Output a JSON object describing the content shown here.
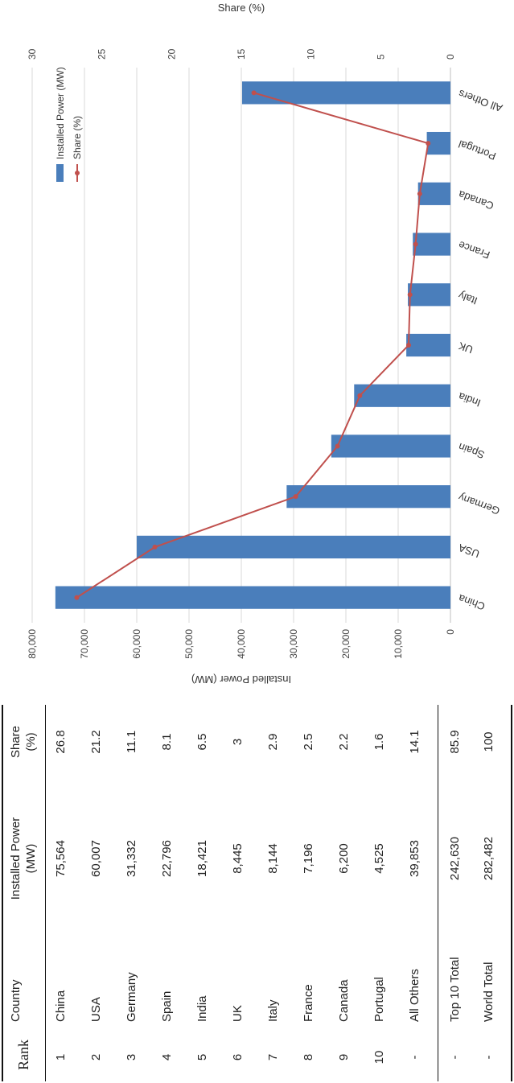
{
  "table": {
    "headers": {
      "rank": "Rank",
      "country": "Country",
      "power_line1": "Installed Power",
      "power_line2": "(MW)",
      "share_line1": "Share",
      "share_line2": "(%)"
    },
    "rows": [
      {
        "rank": "1",
        "country": "China",
        "power": "75,564",
        "share": "26.8"
      },
      {
        "rank": "2",
        "country": "USA",
        "power": "60,007",
        "share": "21.2"
      },
      {
        "rank": "3",
        "country": "Germany",
        "power": "31,332",
        "share": "11.1"
      },
      {
        "rank": "4",
        "country": "Spain",
        "power": "22,796",
        "share": "8.1"
      },
      {
        "rank": "5",
        "country": "India",
        "power": "18,421",
        "share": "6.5"
      },
      {
        "rank": "6",
        "country": "UK",
        "power": "8,445",
        "share": "3"
      },
      {
        "rank": "7",
        "country": "Italy",
        "power": "8,144",
        "share": "2.9"
      },
      {
        "rank": "8",
        "country": "France",
        "power": "7,196",
        "share": "2.5"
      },
      {
        "rank": "9",
        "country": "Canada",
        "power": "6,200",
        "share": "2.2"
      },
      {
        "rank": "10",
        "country": "Portugal",
        "power": "4,525",
        "share": "1.6"
      },
      {
        "rank": "-",
        "country": "All Others",
        "power": "39,853",
        "share": "14.1"
      }
    ],
    "totals": [
      {
        "rank": "-",
        "country": "Top 10 Total",
        "power": "242,630",
        "share": "85.9"
      },
      {
        "rank": "-",
        "country": "World Total",
        "power": "282,482",
        "share": "100"
      }
    ]
  },
  "chart_data": {
    "type": "bar",
    "categories": [
      "China",
      "USA",
      "Germany",
      "Spain",
      "India",
      "UK",
      "Italy",
      "France",
      "Canada",
      "Portugal",
      "All Others"
    ],
    "series": [
      {
        "name": "Installed Power (MW)",
        "type": "bar",
        "axis": "primary",
        "values": [
          75564,
          60007,
          31332,
          22796,
          18421,
          8445,
          8144,
          7196,
          6200,
          4525,
          39853
        ]
      },
      {
        "name": "Share (%)",
        "type": "line",
        "axis": "secondary",
        "values": [
          26.8,
          21.2,
          11.1,
          8.1,
          6.5,
          3,
          2.9,
          2.5,
          2.2,
          1.6,
          14.1
        ]
      }
    ],
    "ylabel": "Installed Power (MW)",
    "y2label": "Share (%)",
    "ylim": [
      0,
      80000
    ],
    "y2lim": [
      0,
      30
    ],
    "yticks": [
      "0",
      "10,000",
      "20,000",
      "30,000",
      "40,000",
      "50,000",
      "60,000",
      "70,000",
      "80,000"
    ],
    "y2ticks": [
      "0",
      "5",
      "10",
      "15",
      "20",
      "25",
      "30"
    ],
    "grid": true,
    "legend": "top-right",
    "colors": {
      "bar": "#4a7ebb",
      "line": "#c0504d"
    }
  }
}
